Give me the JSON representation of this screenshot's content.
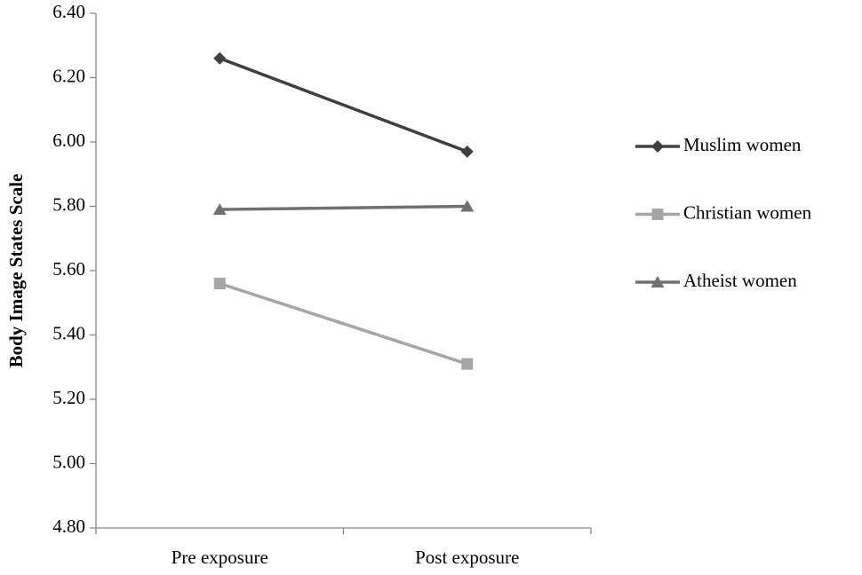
{
  "chart_data": {
    "type": "line",
    "ylabel": "Body Image States Scale",
    "categories": [
      "Pre exposure",
      "Post exposure"
    ],
    "series": [
      {
        "name": "Muslim women",
        "color": "#404040",
        "marker": "diamond",
        "values": [
          6.26,
          5.97
        ]
      },
      {
        "name": "Christian women",
        "color": "#a6a6a6",
        "marker": "square",
        "values": [
          5.56,
          5.31
        ]
      },
      {
        "name": "Atheist women",
        "color": "#707070",
        "marker": "triangle",
        "values": [
          5.79,
          5.8
        ]
      }
    ],
    "ylim": [
      4.8,
      6.4
    ],
    "yticks": [
      {
        "value": 4.8,
        "label": "4.80"
      },
      {
        "value": 5.0,
        "label": "5.00"
      },
      {
        "value": 5.2,
        "label": "5.20"
      },
      {
        "value": 5.4,
        "label": "5.40"
      },
      {
        "value": 5.6,
        "label": "5.60"
      },
      {
        "value": 5.8,
        "label": "5.80"
      },
      {
        "value": 6.0,
        "label": "6.00"
      },
      {
        "value": 6.2,
        "label": "6.20"
      },
      {
        "value": 6.4,
        "label": "6.40"
      }
    ],
    "grid": false,
    "legend": "right"
  }
}
